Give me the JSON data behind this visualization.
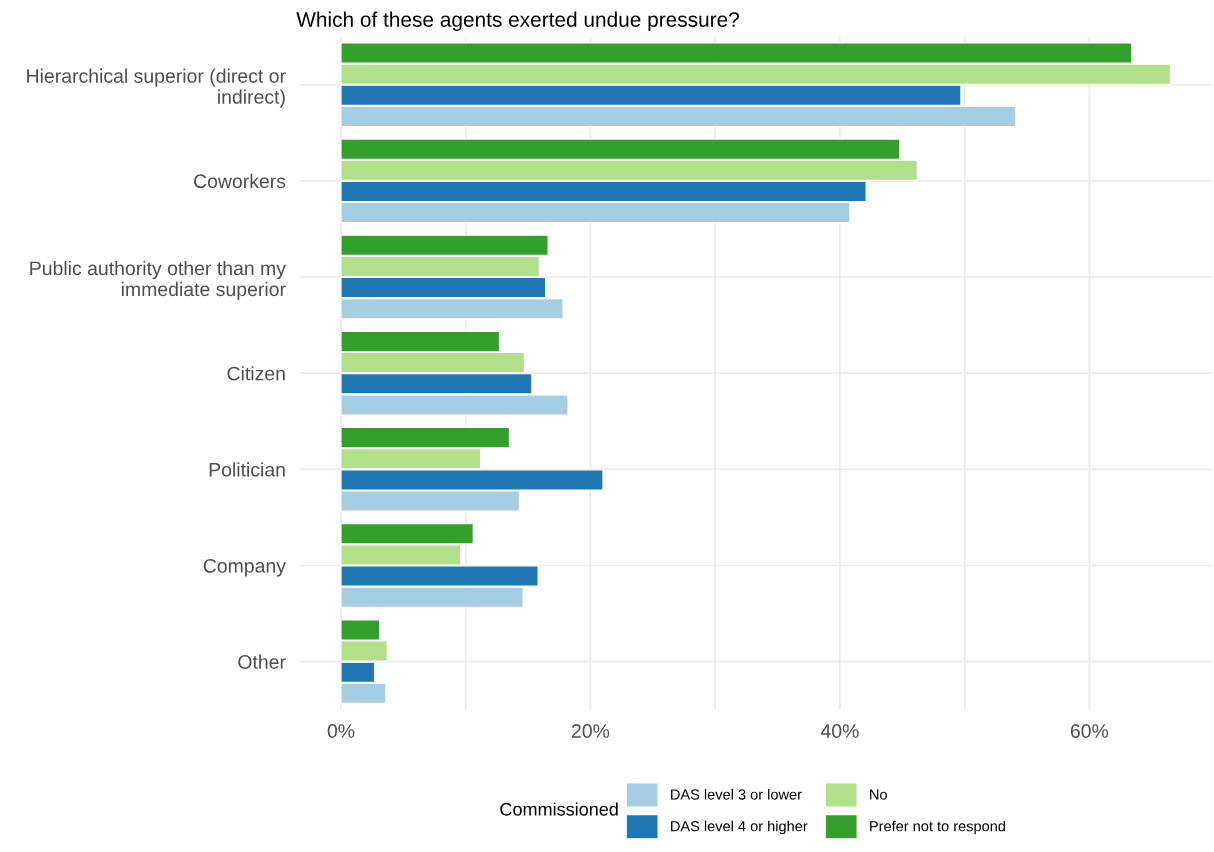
{
  "chart_data": {
    "type": "bar",
    "orientation": "horizontal",
    "title": "Which of these agents exerted undue pressure?",
    "categories": [
      "Hierarchical superior (direct or\nindirect)",
      "Coworkers",
      "Public authority other than my\nimmediate superior",
      "Citizen",
      "Politician",
      "Company",
      "Other"
    ],
    "series": [
      {
        "name": "DAS level 3 or lower",
        "color": "#a6cee3",
        "values": [
          54.1,
          40.8,
          17.8,
          18.2,
          14.3,
          14.6,
          3.6
        ]
      },
      {
        "name": "DAS level 4 or higher",
        "color": "#1f78b4",
        "values": [
          49.7,
          42.1,
          16.4,
          15.3,
          21.0,
          15.8,
          2.7
        ]
      },
      {
        "name": "No",
        "color": "#b2df8a",
        "values": [
          66.5,
          46.2,
          15.9,
          14.7,
          11.2,
          9.6,
          3.7
        ]
      },
      {
        "name": "Prefer not to respond",
        "color": "#33a02c",
        "values": [
          63.4,
          44.8,
          16.6,
          12.7,
          13.5,
          10.6,
          3.1
        ]
      }
    ],
    "xlim": [
      -3.3,
      69.8
    ],
    "xticks": [
      {
        "value": 0,
        "label": "0%"
      },
      {
        "value": 10,
        "label": null
      },
      {
        "value": 20,
        "label": "20%"
      },
      {
        "value": 30,
        "label": null
      },
      {
        "value": 40,
        "label": "40%"
      },
      {
        "value": 50,
        "label": null
      },
      {
        "value": 60,
        "label": "60%"
      }
    ],
    "grid": true,
    "legend": "bottom",
    "legend_title": "Commissioned"
  }
}
